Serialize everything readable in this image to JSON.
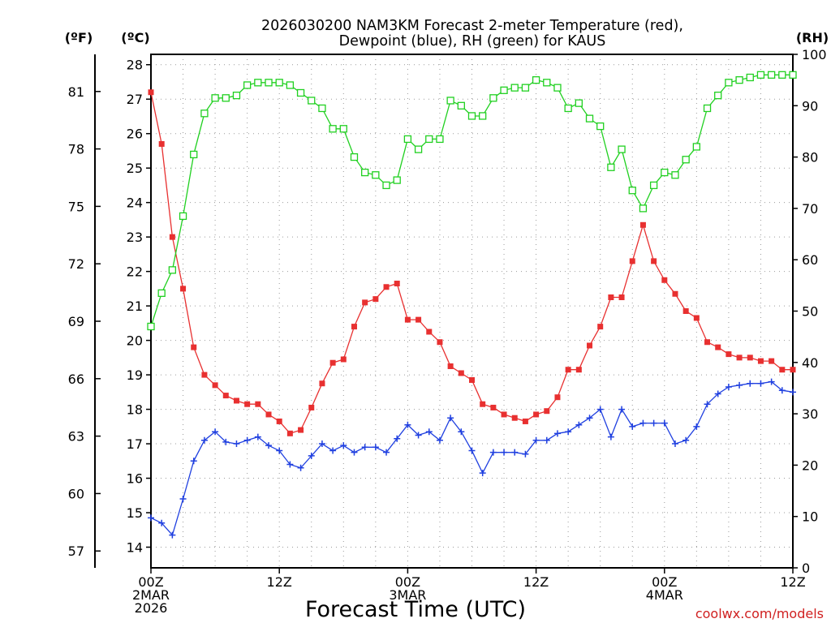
{
  "chart_data": {
    "type": "line",
    "title_line1": "2026030200 NAM3KM Forecast 2-meter Temperature (red),",
    "title_line2": "Dewpoint (blue), RH (green) for KAUS",
    "xlabel": "Forecast Time (UTC)",
    "credit": "coolwx.com/models",
    "unit_labels": {
      "fahrenheit": "(ºF)",
      "celsius": "(ºC)",
      "rh": "(RH)"
    },
    "x_range_hours": [
      0,
      60
    ],
    "y_celsius_range": [
      13.4,
      28.3
    ],
    "y_rh_range": [
      0,
      100
    ],
    "x_ticks": [
      {
        "hour": 0,
        "line1": "00Z",
        "line2": "2MAR",
        "line3": "2026"
      },
      {
        "hour": 12,
        "line1": "12Z",
        "line2": "",
        "line3": ""
      },
      {
        "hour": 24,
        "line1": "00Z",
        "line2": "3MAR",
        "line3": ""
      },
      {
        "hour": 36,
        "line1": "12Z",
        "line2": "",
        "line3": ""
      },
      {
        "hour": 48,
        "line1": "00Z",
        "line2": "4MAR",
        "line3": ""
      },
      {
        "hour": 60,
        "line1": "12Z",
        "line2": "",
        "line3": ""
      }
    ],
    "y_celsius_ticks": [
      "14",
      "15",
      "16",
      "17",
      "18",
      "19",
      "20",
      "21",
      "22",
      "23",
      "24",
      "25",
      "26",
      "27",
      "28"
    ],
    "y_fahrenheit_ticks": [
      "57",
      "60",
      "63",
      "66",
      "69",
      "72",
      "75",
      "78",
      "81"
    ],
    "y_rh_ticks": [
      "0",
      "10",
      "20",
      "30",
      "40",
      "50",
      "60",
      "70",
      "80",
      "90",
      "100"
    ],
    "series": [
      {
        "name": "2-meter Temperature",
        "units": "C",
        "color": "#e83030",
        "marker": "filled-square",
        "values": [
          27.2,
          25.7,
          23.0,
          21.5,
          19.8,
          19.0,
          18.7,
          18.4,
          18.25,
          18.15,
          18.15,
          17.85,
          17.65,
          17.3,
          17.4,
          18.05,
          18.75,
          19.35,
          19.45,
          20.4,
          21.1,
          21.2,
          21.55,
          21.65,
          20.6,
          20.6,
          20.25,
          19.95,
          19.25,
          19.05,
          18.85,
          18.15,
          18.05,
          17.85,
          17.75,
          17.65,
          17.85,
          17.95,
          18.35,
          19.15,
          19.15,
          19.85,
          20.4,
          21.25,
          21.25,
          22.3,
          23.35,
          22.3,
          21.75,
          21.35,
          20.85,
          20.65,
          19.95,
          19.8,
          19.6,
          19.5,
          19.5,
          19.4,
          19.4,
          19.15,
          19.15
        ]
      },
      {
        "name": "Dewpoint",
        "units": "C",
        "color": "#2040e0",
        "marker": "plus",
        "values": [
          14.85,
          14.7,
          14.35,
          15.4,
          16.5,
          17.1,
          17.35,
          17.05,
          17.0,
          17.1,
          17.2,
          16.95,
          16.8,
          16.4,
          16.3,
          16.65,
          17.0,
          16.8,
          16.95,
          16.75,
          16.9,
          16.9,
          16.75,
          17.15,
          17.55,
          17.25,
          17.35,
          17.1,
          17.75,
          17.35,
          16.8,
          16.15,
          16.75,
          16.75,
          16.75,
          16.7,
          17.1,
          17.1,
          17.3,
          17.35,
          17.55,
          17.75,
          18.0,
          17.2,
          18.0,
          17.5,
          17.6,
          17.6,
          17.6,
          17.0,
          17.1,
          17.5,
          18.15,
          18.45,
          18.65,
          18.7,
          18.75,
          18.75,
          18.8,
          18.55,
          18.5
        ]
      },
      {
        "name": "RH",
        "units": "%",
        "color": "#20d020",
        "marker": "open-square",
        "values": [
          47,
          53.5,
          58,
          68.5,
          80.5,
          88.5,
          91.5,
          91.5,
          92,
          94,
          94.5,
          94.5,
          94.5,
          94,
          92.5,
          91,
          89.5,
          85.5,
          85.5,
          80,
          77,
          76.5,
          74.5,
          75.5,
          83.5,
          81.5,
          83.5,
          83.5,
          91,
          90,
          88,
          88,
          91.5,
          93,
          93.5,
          93.5,
          95,
          94.5,
          93.5,
          89.5,
          90.5,
          87.5,
          86,
          78,
          81.5,
          73.5,
          70,
          74.5,
          77,
          76.5,
          79.5,
          82,
          89.5,
          92,
          94.5,
          95,
          95.5,
          96,
          96,
          96,
          96
        ]
      }
    ]
  }
}
